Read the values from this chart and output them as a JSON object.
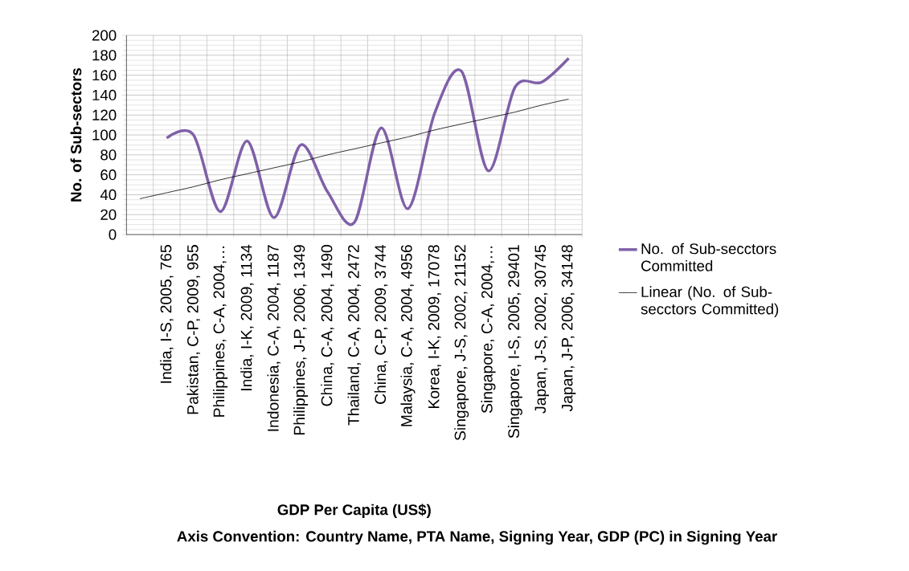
{
  "chart_data": {
    "type": "line",
    "xlabel": "GDP Per Capita (US$)",
    "ylabel": "No. of Sub-sectors",
    "annotations": [
      "Axis Convention: Country Name, PTA Name, Signing Year, GDP (PC) in Signing Year"
    ],
    "categories": [
      null,
      "India, I-S, 2005, 765",
      "Pakistan, C-P, 2009, 955",
      "Philippines, C-A, 2004,…",
      "India, I-K, 2009, 1134",
      "Indonesia, C-A, 2004, 1187",
      "Philippines, J-P, 2006, 1349",
      "China, C-A, 2004, 1490",
      "Thailand, C-A, 2004, 2472",
      "China, C-P, 2009, 3744",
      "Malaysia, C-A, 2004, 4956",
      "Korea, I-K, 2009, 17078",
      "Singapore, J-S, 2002, 21152",
      "Singapore, C-A, 2004,…",
      "Singapore, I-S, 2005, 29401",
      "Japan, J-S, 2002, 30745",
      "Japan, J-P, 2006, 34148"
    ],
    "series": [
      {
        "name": "No. of Sub-secctors Committed",
        "color": "#7f60a8",
        "values": [
          null,
          97,
          100,
          23,
          94,
          17,
          90,
          43,
          12,
          107,
          26,
          122,
          164,
          64,
          148,
          153,
          177
        ]
      },
      {
        "name": "Linear (No. of Sub-secctors Committed)",
        "type": "line",
        "color": "#000000",
        "values": [
          36,
          42,
          48,
          55,
          61,
          67,
          73,
          80,
          86,
          92,
          98,
          105,
          111,
          117,
          123,
          130,
          136
        ]
      }
    ],
    "ylim": [
      0,
      200
    ],
    "yticks": [
      0,
      20,
      40,
      60,
      80,
      100,
      120,
      140,
      160,
      180,
      200
    ],
    "grid": true,
    "legend": "right"
  }
}
